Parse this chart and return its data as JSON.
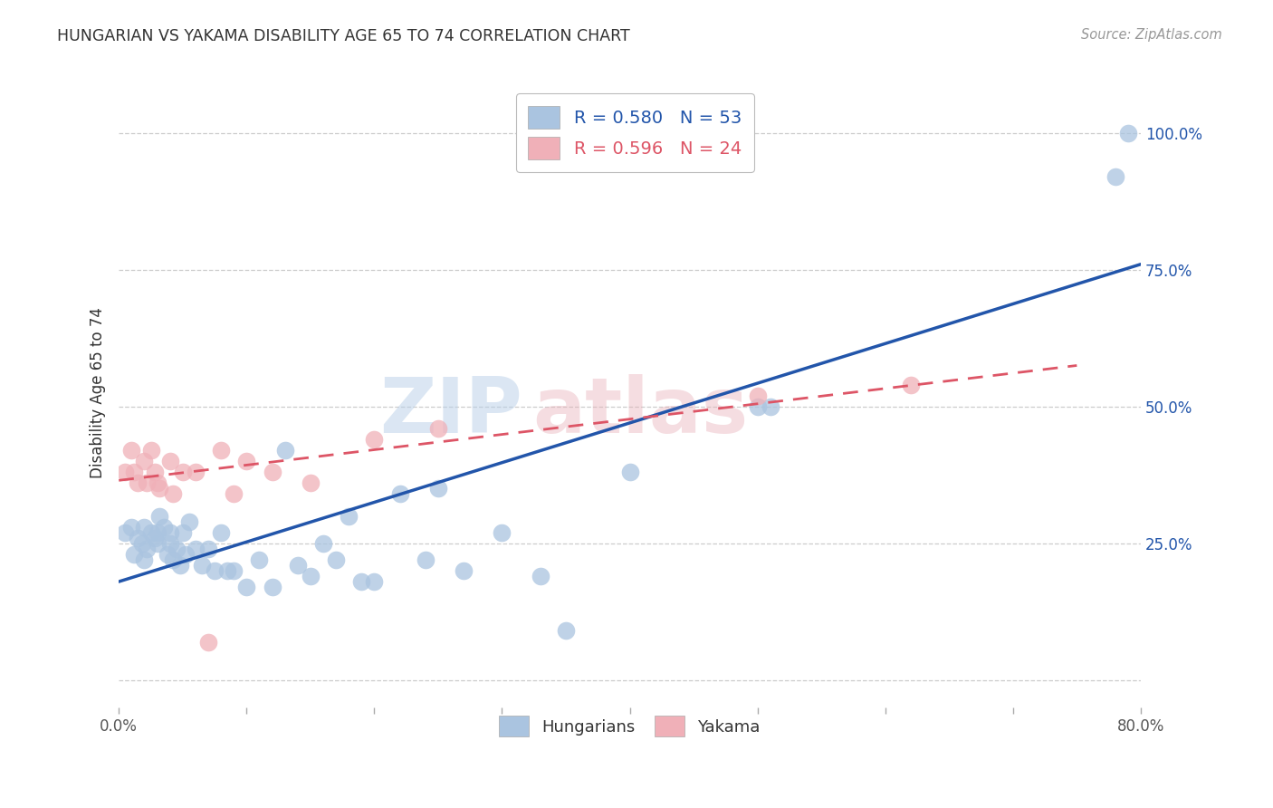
{
  "title": "HUNGARIAN VS YAKAMA DISABILITY AGE 65 TO 74 CORRELATION CHART",
  "source": "Source: ZipAtlas.com",
  "ylabel": "Disability Age 65 to 74",
  "xlim": [
    0.0,
    0.8
  ],
  "ylim": [
    -0.05,
    1.1
  ],
  "ytick_positions": [
    0.0,
    0.25,
    0.5,
    0.75,
    1.0
  ],
  "ytick_labels": [
    "",
    "25.0%",
    "50.0%",
    "75.0%",
    "100.0%"
  ],
  "grid_color": "#cccccc",
  "background_color": "#ffffff",
  "blue_color": "#aac4e0",
  "pink_color": "#f0b0b8",
  "blue_line_color": "#2255aa",
  "pink_line_color": "#dd5566",
  "legend_blue_r": "R = 0.580",
  "legend_blue_n": "N = 53",
  "legend_pink_r": "R = 0.596",
  "legend_pink_n": "N = 24",
  "blue_x": [
    0.005,
    0.01,
    0.012,
    0.015,
    0.018,
    0.02,
    0.02,
    0.022,
    0.025,
    0.028,
    0.03,
    0.03,
    0.032,
    0.035,
    0.038,
    0.04,
    0.04,
    0.042,
    0.045,
    0.048,
    0.05,
    0.052,
    0.055,
    0.06,
    0.065,
    0.07,
    0.075,
    0.08,
    0.085,
    0.09,
    0.1,
    0.11,
    0.12,
    0.13,
    0.14,
    0.15,
    0.16,
    0.17,
    0.18,
    0.19,
    0.2,
    0.22,
    0.24,
    0.25,
    0.27,
    0.3,
    0.33,
    0.35,
    0.4,
    0.5,
    0.51,
    0.78,
    0.79
  ],
  "blue_y": [
    0.27,
    0.28,
    0.23,
    0.26,
    0.25,
    0.28,
    0.22,
    0.24,
    0.27,
    0.26,
    0.25,
    0.27,
    0.3,
    0.28,
    0.23,
    0.25,
    0.27,
    0.22,
    0.24,
    0.21,
    0.27,
    0.23,
    0.29,
    0.24,
    0.21,
    0.24,
    0.2,
    0.27,
    0.2,
    0.2,
    0.17,
    0.22,
    0.17,
    0.42,
    0.21,
    0.19,
    0.25,
    0.22,
    0.3,
    0.18,
    0.18,
    0.34,
    0.22,
    0.35,
    0.2,
    0.27,
    0.19,
    0.09,
    0.38,
    0.5,
    0.5,
    0.92,
    1.0
  ],
  "pink_x": [
    0.005,
    0.01,
    0.012,
    0.015,
    0.02,
    0.022,
    0.025,
    0.028,
    0.03,
    0.032,
    0.04,
    0.042,
    0.05,
    0.06,
    0.07,
    0.08,
    0.09,
    0.1,
    0.12,
    0.15,
    0.2,
    0.25,
    0.5,
    0.62
  ],
  "pink_y": [
    0.38,
    0.42,
    0.38,
    0.36,
    0.4,
    0.36,
    0.42,
    0.38,
    0.36,
    0.35,
    0.4,
    0.34,
    0.38,
    0.38,
    0.07,
    0.42,
    0.34,
    0.4,
    0.38,
    0.36,
    0.44,
    0.46,
    0.52,
    0.54
  ],
  "blue_line_x": [
    0.0,
    0.8
  ],
  "blue_line_y": [
    0.18,
    0.76
  ],
  "pink_line_x": [
    0.0,
    0.75
  ],
  "pink_line_y": [
    0.365,
    0.575
  ]
}
